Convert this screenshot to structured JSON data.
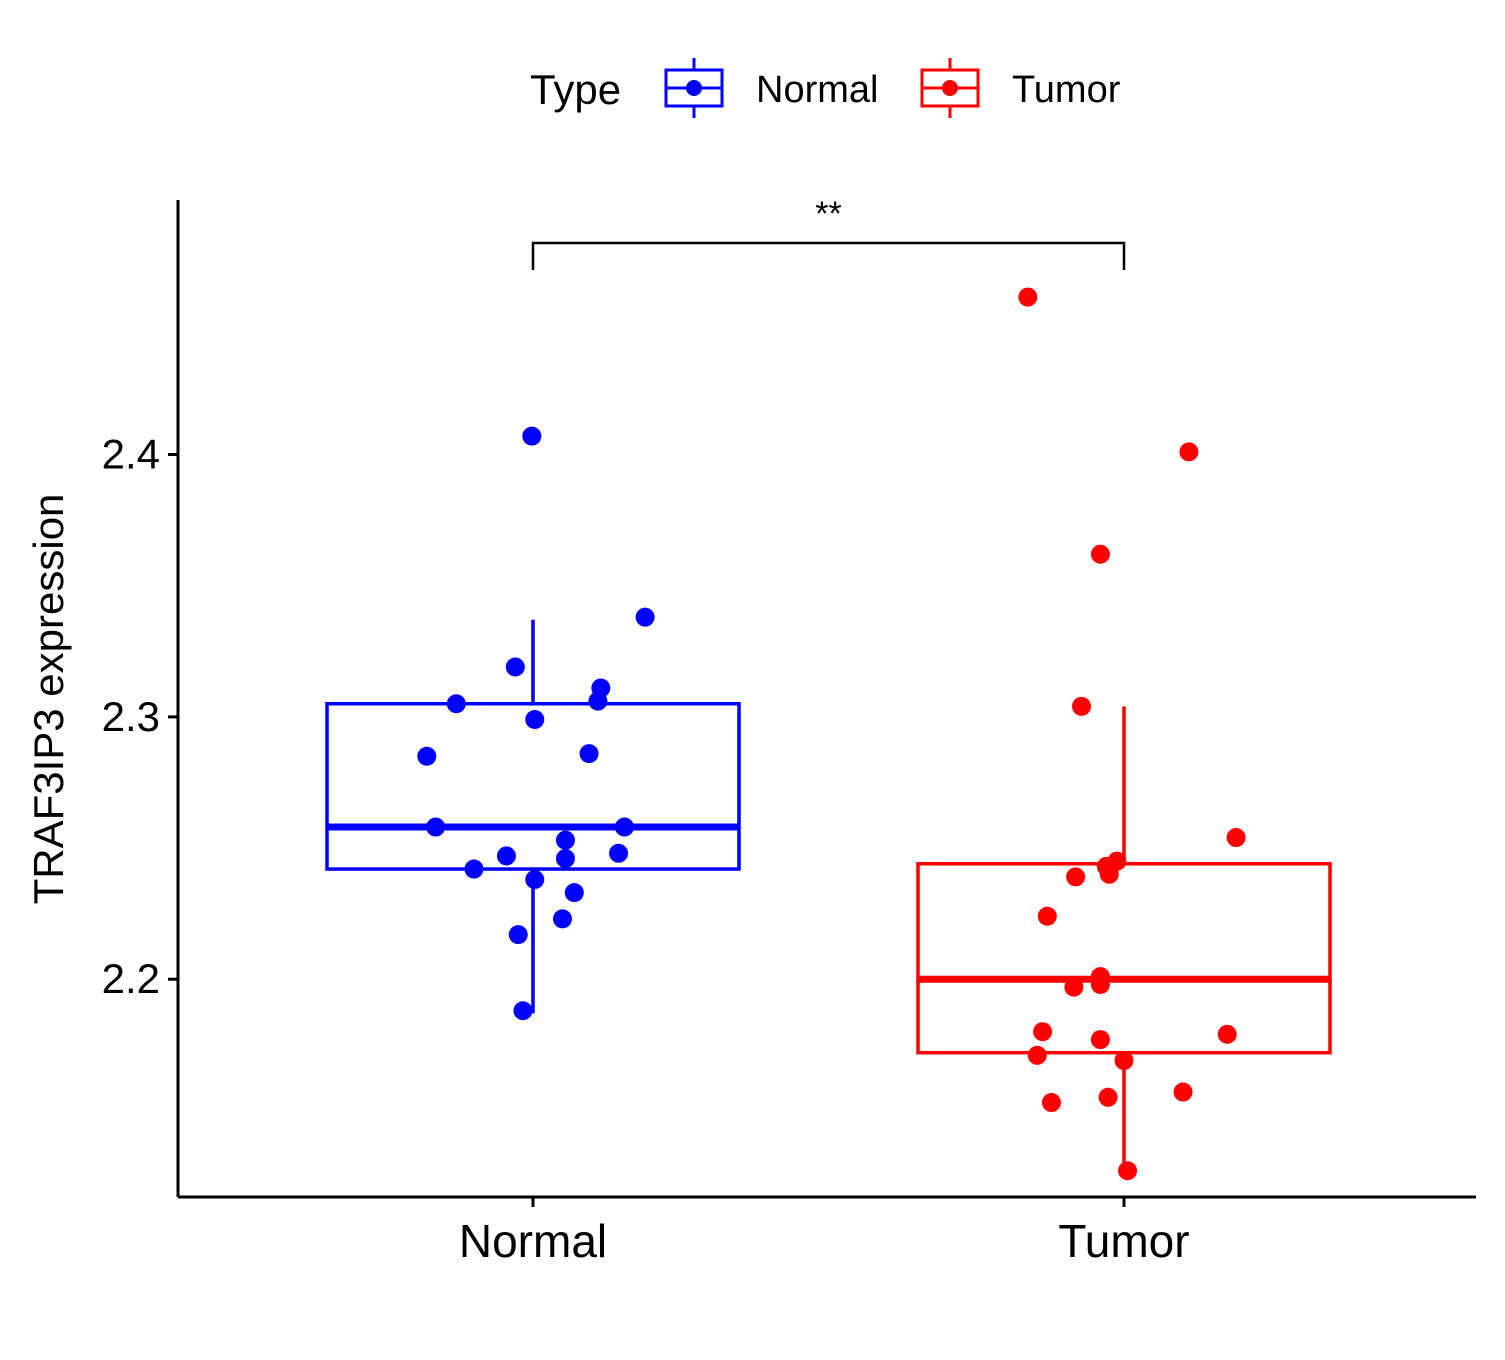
{
  "chart_data": {
    "type": "box",
    "ylabel": "TRAF3IP3 expression",
    "xlabel": "",
    "ylim": [
      2.117,
      2.497
    ],
    "yticks": [
      2.2,
      2.3,
      2.4
    ],
    "ytick_labels": [
      "2.2",
      "2.3",
      "2.4"
    ],
    "categories": [
      "Normal",
      "Tumor"
    ],
    "legend": {
      "title": "Type",
      "position": "top",
      "entries": [
        "Normal",
        "Tumor"
      ]
    },
    "colors": {
      "Normal": "#0000ff",
      "Tumor": "#ff0000",
      "axis": "#000000"
    },
    "significance": {
      "label": "**",
      "from": "Normal",
      "to": "Tumor"
    },
    "series": [
      {
        "name": "Normal",
        "box": {
          "min": 2.187,
          "q1": 2.242,
          "median": 2.258,
          "q3": 2.305,
          "max": 2.337
        },
        "points": [
          [
            -0.002,
            2.407
          ],
          [
            0.19,
            2.338
          ],
          [
            -0.03,
            2.319
          ],
          [
            0.115,
            2.311
          ],
          [
            -0.13,
            2.305
          ],
          [
            0.11,
            2.306
          ],
          [
            0.003,
            2.299
          ],
          [
            -0.18,
            2.285
          ],
          [
            0.095,
            2.286
          ],
          [
            -0.165,
            2.258
          ],
          [
            0.155,
            2.258
          ],
          [
            0.055,
            2.253
          ],
          [
            -0.045,
            2.247
          ],
          [
            0.055,
            2.246
          ],
          [
            0.145,
            2.248
          ],
          [
            -0.1,
            2.242
          ],
          [
            0.003,
            2.238
          ],
          [
            0.07,
            2.233
          ],
          [
            -0.025,
            2.217
          ],
          [
            0.05,
            2.223
          ],
          [
            -0.017,
            2.188
          ]
        ]
      },
      {
        "name": "Tumor",
        "box": {
          "min": 2.127,
          "q1": 2.172,
          "median": 2.2,
          "q3": 2.244,
          "max": 2.304
        },
        "points": [
          [
            -0.163,
            2.46
          ],
          [
            0.11,
            2.401
          ],
          [
            -0.04,
            2.362
          ],
          [
            -0.072,
            2.304
          ],
          [
            0.19,
            2.254
          ],
          [
            -0.03,
            2.243
          ],
          [
            -0.012,
            2.245
          ],
          [
            -0.082,
            2.239
          ],
          [
            -0.025,
            2.24
          ],
          [
            -0.13,
            2.224
          ],
          [
            -0.04,
            2.201
          ],
          [
            -0.04,
            2.198
          ],
          [
            -0.085,
            2.197
          ],
          [
            -0.138,
            2.18
          ],
          [
            0.175,
            2.179
          ],
          [
            -0.04,
            2.177
          ],
          [
            -0.147,
            2.171
          ],
          [
            0.0,
            2.169
          ],
          [
            0.1,
            2.157
          ],
          [
            -0.123,
            2.153
          ],
          [
            -0.027,
            2.155
          ],
          [
            0.006,
            2.127
          ]
        ]
      }
    ]
  }
}
